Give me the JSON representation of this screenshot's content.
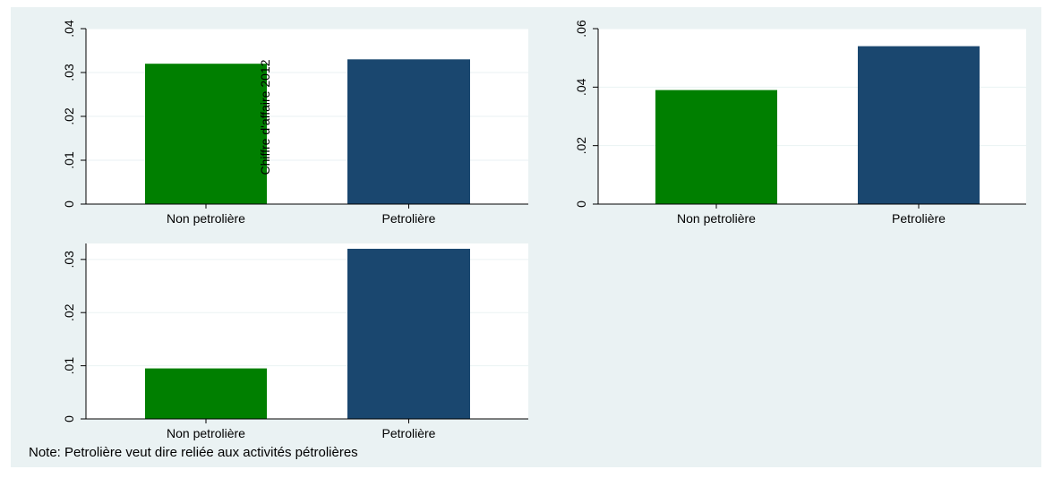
{
  "chart_data": [
    {
      "type": "bar",
      "categories": [
        "Non petrolière",
        "Petrolière"
      ],
      "values": [
        0.032,
        0.033
      ],
      "ylabel": "Chiffre d'affaire 2012",
      "ylim": [
        0,
        0.04
      ],
      "yticks": [
        "0",
        ".01",
        ".02",
        ".03",
        ".04"
      ],
      "ytick_values": [
        0,
        0.01,
        0.02,
        0.03,
        0.04
      ],
      "grid": true,
      "colors": [
        "#007f00",
        "#1a476f"
      ]
    },
    {
      "type": "bar",
      "categories": [
        "Non petrolière",
        "Petrolière"
      ],
      "values": [
        0.039,
        0.054
      ],
      "ylabel": "",
      "ylim": [
        0,
        0.06
      ],
      "yticks": [
        "0",
        ".02",
        ".04",
        ".06"
      ],
      "ytick_values": [
        0,
        0.02,
        0.04,
        0.06
      ],
      "grid": true,
      "colors": [
        "#007f00",
        "#1a476f"
      ]
    },
    {
      "type": "bar",
      "categories": [
        "Non petrolière",
        "Petrolière"
      ],
      "values": [
        0.0095,
        0.032
      ],
      "ylabel": "",
      "ylim": [
        0,
        0.033
      ],
      "yticks": [
        "0",
        ".01",
        ".02",
        ".03"
      ],
      "ytick_values": [
        0,
        0.01,
        0.02,
        0.03
      ],
      "grid": true,
      "colors": [
        "#007f00",
        "#1a476f"
      ]
    }
  ],
  "note": "Note: Petrolière veut dire reliée aux activités pétrolières",
  "colors": {
    "figure_bg": "#eaf2f3",
    "plot_bg": "#ffffff",
    "grid": "#eaf2f3",
    "green": "#007f00",
    "navy": "#1a476f"
  }
}
